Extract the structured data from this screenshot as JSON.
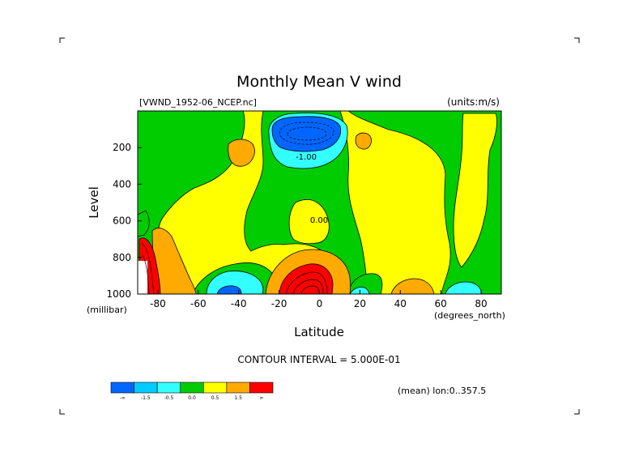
{
  "chart_data": {
    "type": "contour",
    "title": "Monthly Mean V wind",
    "dataset_label": "[VWND_1952-06_NCEP.nc]",
    "units_label": "(units:m/s)",
    "xlabel": "Latitude",
    "x_units": "(degrees_north)",
    "ylabel": "Level",
    "y_units": "(millibar)",
    "xlim": [
      -90,
      90
    ],
    "ylim": [
      1000,
      0
    ],
    "x_ticks": [
      -80,
      -60,
      -40,
      -20,
      0,
      20,
      40,
      60,
      80
    ],
    "y_ticks": [
      200,
      400,
      600,
      800,
      1000
    ],
    "contour_interval_text": "CONTOUR INTERVAL = 5.000E-01",
    "mean_text": "(mean) lon:0..357.5",
    "contour_labels": [
      {
        "text": "0.00",
        "lat": -8,
        "level": 600
      },
      {
        "text": "-1.00",
        "lat": -7,
        "level": 215
      }
    ],
    "colorbar": {
      "colors": [
        "#0066ff",
        "#00ccff",
        "#33ffff",
        "#00cc00",
        "#ffff00",
        "#ffaa00",
        "#ff0000"
      ],
      "labels": [
        "-∞",
        "-1.5",
        "-0.5",
        "0.0",
        "0.5",
        "1.5",
        "∞"
      ]
    },
    "regions": [
      {
        "name": "strong-southward-upper",
        "value": -1.6,
        "center": [
          -7,
          175
        ]
      },
      {
        "name": "southward-upper-edge",
        "value": -0.6,
        "center": [
          -7,
          205
        ]
      },
      {
        "name": "northward-lower-tropics",
        "value": 1.6,
        "center": [
          -2,
          940
        ]
      },
      {
        "name": "weak-northward-lower",
        "value": 1.0,
        "center": [
          -10,
          860
        ]
      },
      {
        "name": "southward-lower-south",
        "value": -0.7,
        "center": [
          -35,
          960
        ]
      },
      {
        "name": "northward-upper-south",
        "value": 0.8,
        "center": [
          -39,
          220
        ]
      },
      {
        "name": "northward-lower-40N",
        "value": 0.8,
        "center": [
          43,
          985
        ]
      },
      {
        "name": "polar-south-extreme",
        "value": 2.0,
        "center": [
          -85,
          900
        ]
      }
    ]
  }
}
